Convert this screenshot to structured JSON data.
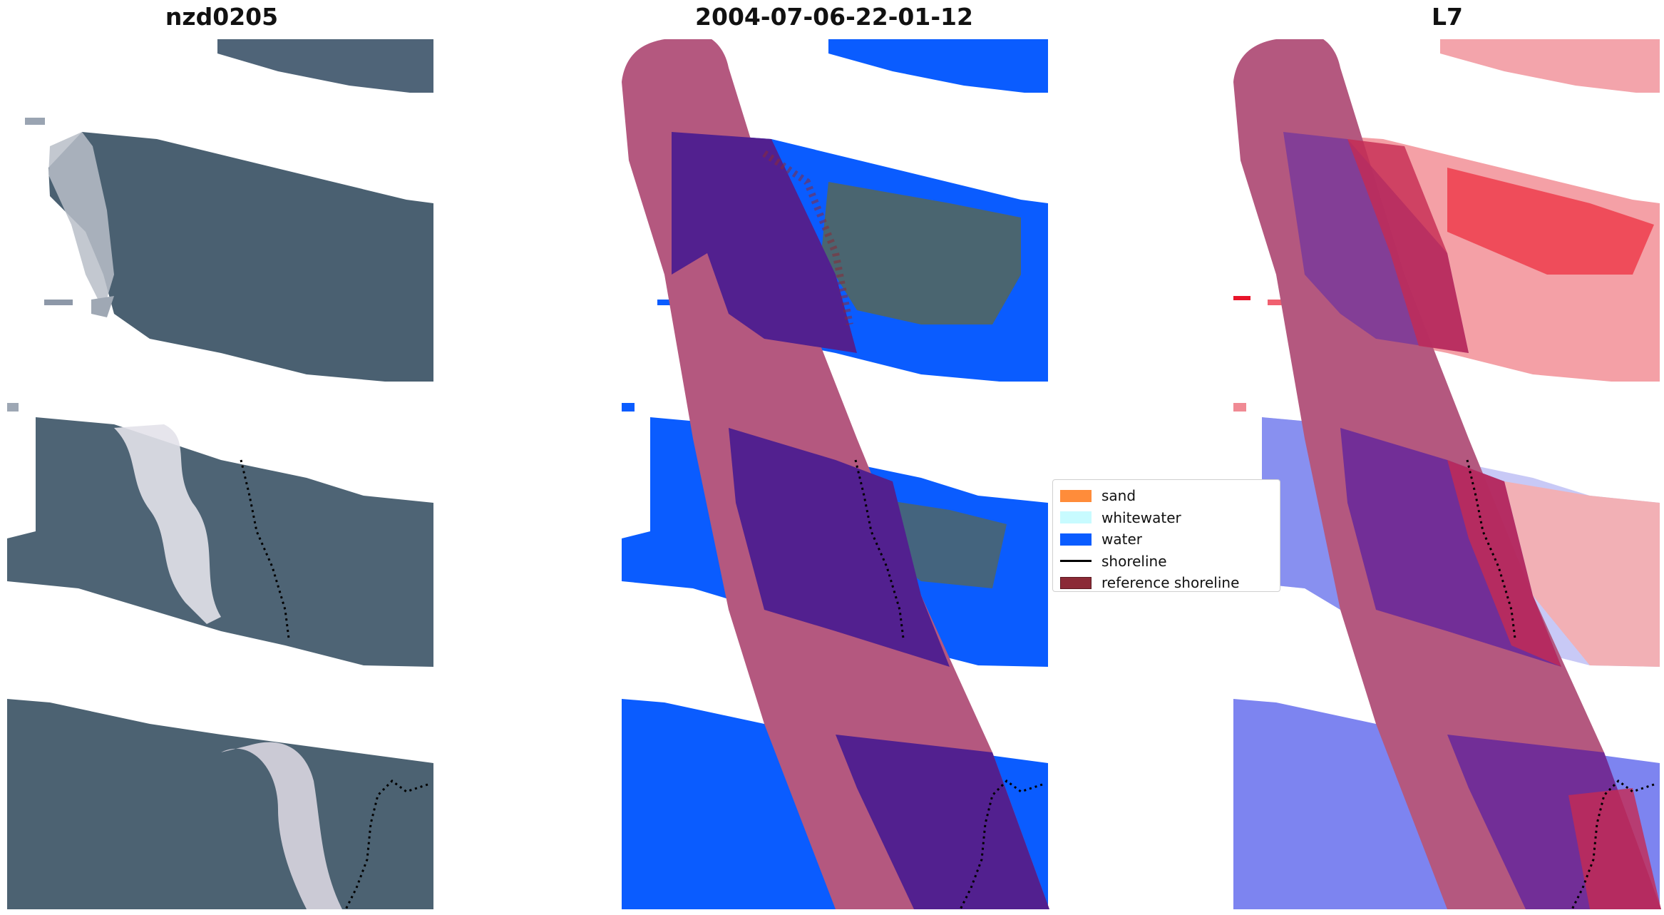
{
  "titles": {
    "left": "nzd0205",
    "center": "2004-07-06-22-01-12",
    "right": "L7"
  },
  "legend": {
    "items": [
      {
        "label": "sand",
        "color": "#ff8c3a",
        "kind": "patch"
      },
      {
        "label": "whitewater",
        "color": "#c8fbff",
        "kind": "patch"
      },
      {
        "label": "water",
        "color": "#0a5cff",
        "kind": "patch"
      },
      {
        "label": "shoreline",
        "color": "#000000",
        "kind": "line"
      },
      {
        "label": "reference shoreline",
        "color": "#8b2a36",
        "kind": "patch"
      }
    ]
  },
  "colors": {
    "sea": "#4c6175",
    "surf": "#c9cdd8",
    "water_class": "#0a5cff",
    "buffer": "#b4587f",
    "buffer_over_water": "#52208f",
    "index_positive": "#e8142a",
    "index_negative": "#2233ee"
  }
}
